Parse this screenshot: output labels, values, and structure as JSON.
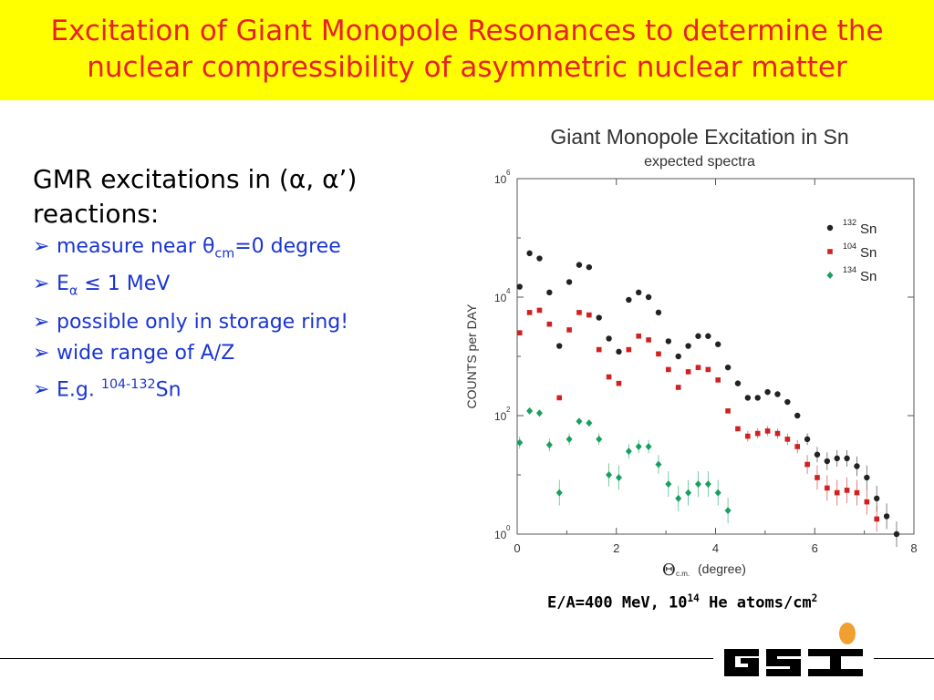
{
  "title": {
    "line1": "Excitation of Giant Monopole Resonances to determine the",
    "line2": "nuclear compressibility of asymmetric nuclear matter"
  },
  "heading": {
    "line1_prefix": "GMR excitations in (",
    "alpha": "α",
    "comma": ", ",
    "alpha_prime": "α’)",
    "line2": "reactions:"
  },
  "bullets": {
    "b1_prefix": "measure near ",
    "b1_theta": "θ",
    "b1_sub": "cm",
    "b1_suffix": "=0 degree",
    "b2_prefix": "E",
    "b2_sub": "α",
    "b2_suffix": " ≤ 1 MeV",
    "b3": "possible only in storage ring!",
    "b4": "wide range of A/Z",
    "b5_prefix": "E.g. ",
    "b5_sup": "104-132",
    "b5_suffix": "Sn",
    "marker": "➢"
  },
  "footnote": {
    "prefix": "E/A=400 MeV,  10",
    "sup1": "14",
    "mid": " He atoms/cm",
    "sup2": "2"
  },
  "logo": {
    "text": "GSI"
  },
  "colors": {
    "title": "#e8202a",
    "title_bg": "#ffff00",
    "bullets": "#1a35d4"
  },
  "chart_data": {
    "type": "scatter",
    "title": "Giant Monopole Excitation in Sn",
    "subtitle": "expected spectra",
    "xlabel": "(degree)",
    "xlabel_symbol": "Θ",
    "xlabel_sub": "c.m.",
    "ylabel": "COUNTS per DAY",
    "xlim": [
      0,
      8
    ],
    "ylim": [
      1,
      1000000
    ],
    "yscale": "log",
    "grid": false,
    "legend": "top-right",
    "x_ticks": [
      "0",
      "2",
      "4",
      "6",
      "8"
    ],
    "y_ticks": [
      {
        "base": "10",
        "exp": "0"
      },
      {
        "base": "10",
        "exp": "2"
      },
      {
        "base": "10",
        "exp": "4"
      },
      {
        "base": "10",
        "exp": "6"
      }
    ],
    "series": [
      {
        "name": "Sn",
        "mass": "132",
        "marker": "circle",
        "color": "#222222",
        "points": [
          [
            0.05,
            15000
          ],
          [
            0.25,
            55000
          ],
          [
            0.45,
            45000
          ],
          [
            0.65,
            12000
          ],
          [
            0.85,
            1500
          ],
          [
            1.05,
            18000
          ],
          [
            1.25,
            35000
          ],
          [
            1.45,
            32000
          ],
          [
            1.65,
            4500
          ],
          [
            1.85,
            2000
          ],
          [
            2.05,
            1200
          ],
          [
            2.25,
            9000
          ],
          [
            2.45,
            12000
          ],
          [
            2.65,
            10000
          ],
          [
            2.85,
            5500
          ],
          [
            3.05,
            1800
          ],
          [
            3.25,
            1000
          ],
          [
            3.45,
            1500
          ],
          [
            3.65,
            2200
          ],
          [
            3.85,
            2200
          ],
          [
            4.05,
            1600
          ],
          [
            4.25,
            650
          ],
          [
            4.45,
            350
          ],
          [
            4.65,
            200
          ],
          [
            4.85,
            200
          ],
          [
            5.05,
            250
          ],
          [
            5.25,
            230
          ],
          [
            5.45,
            170
          ],
          [
            5.65,
            100
          ],
          [
            5.85,
            40
          ],
          [
            6.05,
            22
          ],
          [
            6.25,
            17
          ],
          [
            6.45,
            19
          ],
          [
            6.65,
            19
          ],
          [
            6.85,
            14
          ],
          [
            7.05,
            9
          ],
          [
            7.25,
            4
          ],
          [
            7.45,
            2
          ],
          [
            7.65,
            1
          ]
        ]
      },
      {
        "name": "Sn",
        "mass": "104",
        "marker": "square",
        "color": "#d02020",
        "points": [
          [
            0.05,
            2500
          ],
          [
            0.25,
            5500
          ],
          [
            0.45,
            6000
          ],
          [
            0.65,
            3500
          ],
          [
            0.85,
            200
          ],
          [
            1.05,
            2800
          ],
          [
            1.25,
            5500
          ],
          [
            1.45,
            5000
          ],
          [
            1.65,
            1300
          ],
          [
            1.85,
            450
          ],
          [
            2.05,
            350
          ],
          [
            2.25,
            1300
          ],
          [
            2.45,
            2200
          ],
          [
            2.65,
            1900
          ],
          [
            2.85,
            1100
          ],
          [
            3.05,
            600
          ],
          [
            3.25,
            300
          ],
          [
            3.45,
            550
          ],
          [
            3.65,
            650
          ],
          [
            3.85,
            600
          ],
          [
            4.05,
            400
          ],
          [
            4.25,
            120
          ],
          [
            4.45,
            60
          ],
          [
            4.65,
            45
          ],
          [
            4.85,
            50
          ],
          [
            5.05,
            55
          ],
          [
            5.25,
            50
          ],
          [
            5.45,
            40
          ],
          [
            5.65,
            30
          ],
          [
            5.85,
            15
          ],
          [
            6.05,
            9
          ],
          [
            6.25,
            6
          ],
          [
            6.45,
            5
          ],
          [
            6.65,
            5.5
          ],
          [
            6.85,
            5
          ],
          [
            7.05,
            3.5
          ],
          [
            7.25,
            1.8
          ]
        ]
      },
      {
        "name": "Sn",
        "mass": "134",
        "marker": "diamond",
        "color": "#18a060",
        "points": [
          [
            0.05,
            35
          ],
          [
            0.25,
            120
          ],
          [
            0.45,
            110
          ],
          [
            0.65,
            32
          ],
          [
            0.85,
            5
          ],
          [
            1.05,
            40
          ],
          [
            1.25,
            80
          ],
          [
            1.45,
            75
          ],
          [
            1.65,
            40
          ],
          [
            1.85,
            10
          ],
          [
            2.05,
            9
          ],
          [
            2.25,
            25
          ],
          [
            2.45,
            30
          ],
          [
            2.65,
            30
          ],
          [
            2.85,
            15
          ],
          [
            3.05,
            7
          ],
          [
            3.25,
            4
          ],
          [
            3.45,
            5
          ],
          [
            3.65,
            7
          ],
          [
            3.85,
            7
          ],
          [
            4.05,
            5
          ],
          [
            4.25,
            2.5
          ]
        ]
      }
    ]
  }
}
